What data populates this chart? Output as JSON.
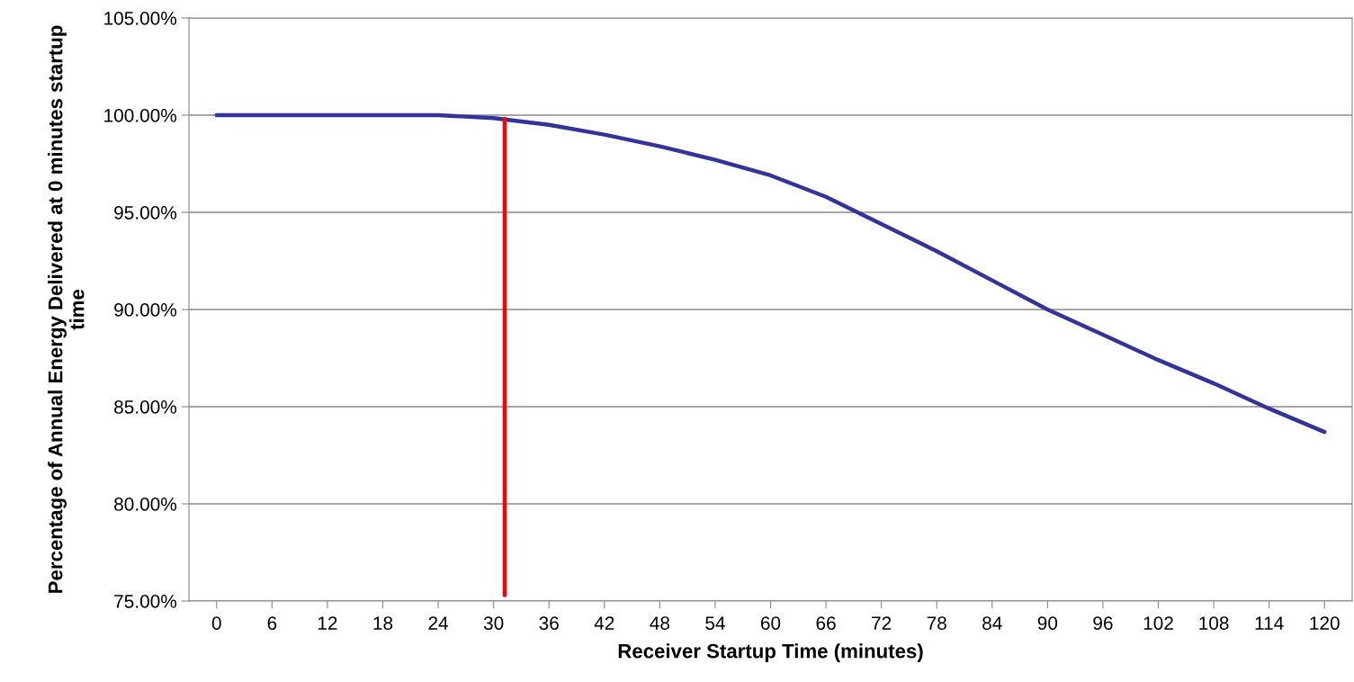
{
  "chart_data": {
    "type": "line",
    "xlabel": "Receiver Startup Time (minutes)",
    "ylabel": "Percentage of Annual Energy Delivered at 0 minutes startup time",
    "x": [
      0,
      6,
      12,
      18,
      24,
      30,
      36,
      42,
      48,
      54,
      60,
      66,
      72,
      78,
      84,
      90,
      96,
      102,
      108,
      114,
      120
    ],
    "series": [
      {
        "color": "#333399",
        "values": [
          100,
          100,
          100,
          100,
          100,
          99.85,
          99.5,
          99.0,
          98.4,
          97.7,
          96.9,
          95.8,
          94.4,
          93.0,
          91.5,
          90.0,
          88.7,
          87.4,
          86.2,
          84.9,
          83.7
        ]
      },
      {
        "color": "#ff0000",
        "x": [
          31.2,
          31.2
        ],
        "values": [
          75.3,
          99.8
        ]
      }
    ],
    "xlim": [
      -3,
      123
    ],
    "xticks": [
      0,
      6,
      12,
      18,
      24,
      30,
      36,
      42,
      48,
      54,
      60,
      66,
      72,
      78,
      84,
      90,
      96,
      102,
      108,
      114,
      120
    ],
    "ylim": [
      75,
      105
    ],
    "yticks": [
      {
        "value": 75,
        "label": "75.00%"
      },
      {
        "value": 80,
        "label": "80.00%"
      },
      {
        "value": 85,
        "label": "85.00%"
      },
      {
        "value": 90,
        "label": "90.00%"
      },
      {
        "value": 95,
        "label": "95.00%"
      },
      {
        "value": 100,
        "label": "100.00%"
      },
      {
        "value": 105,
        "label": "105.00%"
      }
    ],
    "grid": "y",
    "marker": "none",
    "line_style": "solid"
  }
}
